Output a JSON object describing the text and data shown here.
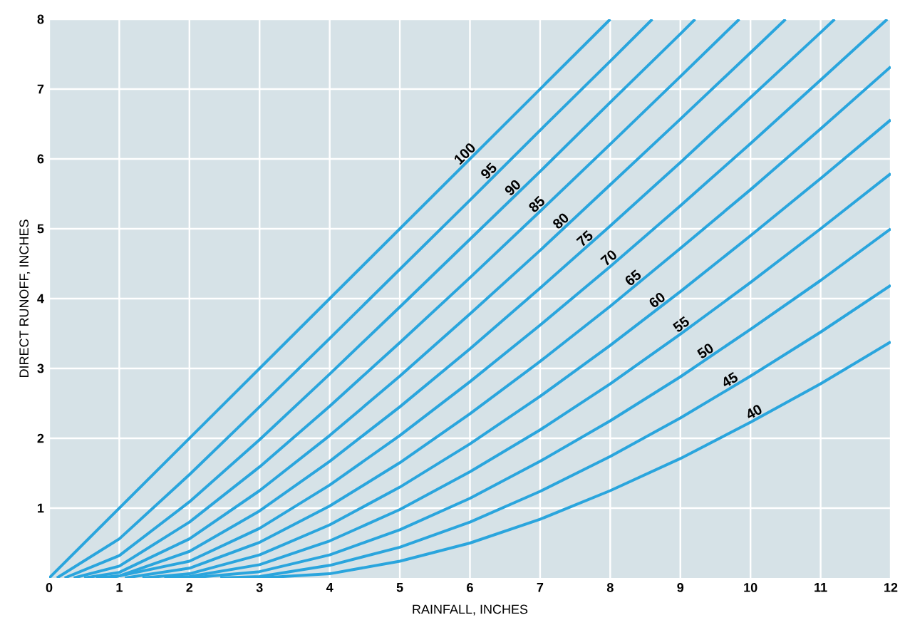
{
  "chart_data": {
    "type": "line",
    "xlabel": "RAINFALL, INCHES",
    "ylabel": "DIRECT RUNOFF, INCHES",
    "xlim": [
      0,
      12
    ],
    "ylim": [
      0,
      8
    ],
    "xticks": [
      0,
      1,
      2,
      3,
      4,
      5,
      6,
      7,
      8,
      9,
      10,
      11,
      12
    ],
    "yticks": [
      1,
      2,
      3,
      4,
      5,
      6,
      7,
      8
    ],
    "grid": true,
    "series": [
      {
        "name": "100",
        "color": "#2aa5dd",
        "x": [
          0,
          8
        ],
        "values": [
          0,
          8
        ]
      },
      {
        "name": "95",
        "color": "#2aa5dd",
        "x": [
          0.11,
          1,
          2,
          3,
          4,
          5,
          6,
          7,
          8,
          8.6
        ],
        "values": [
          0,
          0.56,
          1.48,
          2.45,
          3.43,
          4.42,
          5.41,
          6.41,
          7.4,
          8
        ]
      },
      {
        "name": "90",
        "color": "#2aa5dd",
        "x": [
          0.22,
          1,
          2,
          3,
          4,
          5,
          6,
          7,
          8,
          9,
          9.21
        ],
        "values": [
          0,
          0.32,
          1.09,
          1.98,
          2.92,
          3.88,
          4.85,
          5.82,
          6.81,
          7.79,
          8
        ]
      },
      {
        "name": "85",
        "color": "#2aa5dd",
        "x": [
          0.35,
          1,
          2,
          3,
          4,
          5,
          6,
          7,
          8,
          9,
          9.84
        ],
        "values": [
          0,
          0.17,
          0.8,
          1.59,
          2.46,
          3.37,
          4.3,
          5.25,
          6.21,
          7.18,
          8
        ]
      },
      {
        "name": "80",
        "color": "#2aa5dd",
        "x": [
          0.5,
          1,
          2,
          3,
          4,
          5,
          6,
          7,
          8,
          9,
          10,
          10.5
        ],
        "values": [
          0,
          0.08,
          0.56,
          1.25,
          2.04,
          2.89,
          3.78,
          4.69,
          5.63,
          6.57,
          7.52,
          8
        ]
      },
      {
        "name": "75",
        "color": "#2aa5dd",
        "x": [
          0.67,
          1,
          2,
          3,
          4,
          5,
          6,
          7,
          8,
          9,
          10,
          11,
          11.2
        ],
        "values": [
          0,
          0.03,
          0.38,
          0.96,
          1.67,
          2.45,
          3.28,
          4.15,
          5.04,
          5.95,
          6.88,
          7.81,
          8
        ]
      },
      {
        "name": "70",
        "color": "#2aa5dd",
        "x": [
          0.86,
          2,
          3,
          4,
          5,
          6,
          7,
          8,
          9,
          10,
          11,
          11.95
        ],
        "values": [
          0,
          0.24,
          0.71,
          1.33,
          2.04,
          2.81,
          3.62,
          4.46,
          5.33,
          6.22,
          7.13,
          8
        ]
      },
      {
        "name": "65",
        "color": "#2aa5dd",
        "x": [
          1.08,
          2,
          3,
          4,
          5,
          6,
          7,
          8,
          9,
          10,
          11,
          12
        ],
        "values": [
          0,
          0.14,
          0.51,
          1.03,
          1.65,
          2.35,
          3.1,
          3.89,
          4.72,
          5.56,
          6.43,
          7.32
        ]
      },
      {
        "name": "60",
        "color": "#2aa5dd",
        "x": [
          1.33,
          2,
          3,
          4,
          5,
          6,
          7,
          8,
          9,
          10,
          11,
          12
        ],
        "values": [
          0,
          0.06,
          0.33,
          0.76,
          1.3,
          1.92,
          2.6,
          3.33,
          4.1,
          4.9,
          5.72,
          6.56
        ]
      },
      {
        "name": "55",
        "color": "#2aa5dd",
        "x": [
          1.64,
          2,
          3,
          4,
          5,
          6,
          7,
          8,
          9,
          10,
          11,
          12
        ],
        "values": [
          0,
          0.02,
          0.19,
          0.53,
          0.98,
          1.52,
          2.12,
          2.78,
          3.49,
          4.23,
          5.0,
          5.79
        ]
      },
      {
        "name": "50",
        "color": "#2aa5dd",
        "x": [
          2,
          3,
          4,
          5,
          6,
          7,
          8,
          9,
          10,
          11,
          12
        ],
        "values": [
          0,
          0.09,
          0.33,
          0.69,
          1.14,
          1.67,
          2.25,
          2.88,
          3.56,
          4.26,
          5.0
        ]
      },
      {
        "name": "45",
        "color": "#2aa5dd",
        "x": [
          2.44,
          3,
          4,
          5,
          6,
          7,
          8,
          9,
          10,
          11,
          12
        ],
        "values": [
          0,
          0.02,
          0.18,
          0.44,
          0.8,
          1.24,
          1.74,
          2.29,
          2.89,
          3.52,
          4.19
        ]
      },
      {
        "name": "40",
        "color": "#2aa5dd",
        "x": [
          3,
          4,
          5,
          6,
          7,
          8,
          9,
          10,
          11,
          12
        ],
        "values": [
          0,
          0.06,
          0.24,
          0.5,
          0.84,
          1.25,
          1.71,
          2.23,
          2.78,
          3.38
        ]
      }
    ]
  }
}
